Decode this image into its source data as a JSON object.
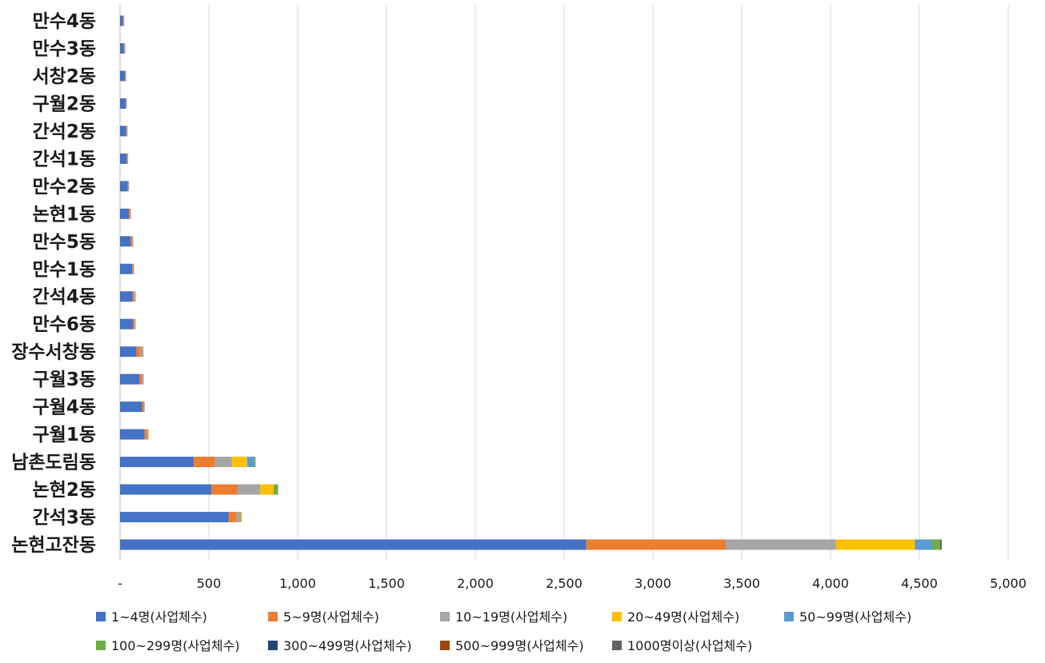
{
  "chart_data": {
    "type": "bar",
    "orientation": "horizontal",
    "stacked": true,
    "title": "",
    "xlabel": "",
    "ylabel": "",
    "xlim": [
      0,
      5000
    ],
    "x_ticks": [
      0,
      500,
      1000,
      1500,
      2000,
      2500,
      3000,
      3500,
      4000,
      4500,
      5000
    ],
    "x_tick_labels": [
      "-",
      "500",
      "1,000",
      "1,500",
      "2,000",
      "2,500",
      "3,000",
      "3,500",
      "4,000",
      "4,500",
      "5,000"
    ],
    "grid": true,
    "legend_position": "bottom",
    "categories": [
      "만수4동",
      "만수3동",
      "서창2동",
      "구월2동",
      "간석2동",
      "간석1동",
      "만수2동",
      "논현1동",
      "만수5동",
      "만수1동",
      "간석4동",
      "만수6동",
      "장수서창동",
      "구월3동",
      "구월4동",
      "구월1동",
      "남촌도림동",
      "논현2동",
      "간석3동",
      "논현고잔동"
    ],
    "series": [
      {
        "name": "1~4명(사업체수)",
        "color": "#4472C4",
        "values": [
          16,
          22,
          28,
          32,
          35,
          38,
          44,
          50,
          60,
          68,
          70,
          72,
          92,
          110,
          125,
          138,
          415,
          515,
          612,
          2625
        ]
      },
      {
        "name": "5~9명(사업체수)",
        "color": "#ED7D31",
        "values": [
          4,
          4,
          3,
          3,
          4,
          4,
          3,
          8,
          10,
          8,
          10,
          10,
          24,
          15,
          10,
          14,
          120,
          145,
          45,
          785
        ]
      },
      {
        "name": "10~19명(사업체수)",
        "color": "#A5A5A5",
        "values": [
          1,
          1,
          1,
          2,
          3,
          2,
          2,
          2,
          4,
          3,
          8,
          6,
          16,
          8,
          4,
          6,
          95,
          130,
          25,
          620
        ]
      },
      {
        "name": "20~49명(사업체수)",
        "color": "#FFC000",
        "values": [
          0,
          0,
          0,
          0,
          0,
          0,
          0,
          0,
          0,
          0,
          0,
          0,
          0,
          0,
          0,
          4,
          85,
          75,
          4,
          445
        ]
      },
      {
        "name": "50~99명(사업체수)",
        "color": "#5B9BD5",
        "values": [
          0,
          0,
          0,
          0,
          0,
          0,
          0,
          0,
          0,
          0,
          0,
          0,
          0,
          0,
          0,
          0,
          40,
          0,
          0,
          95
        ]
      },
      {
        "name": "100~299명(사업체수)",
        "color": "#70AD47",
        "values": [
          0,
          0,
          0,
          0,
          0,
          0,
          0,
          0,
          0,
          0,
          0,
          0,
          0,
          0,
          0,
          0,
          8,
          25,
          0,
          48
        ]
      },
      {
        "name": "300~499명(사업체수)",
        "color": "#264478",
        "values": [
          0,
          0,
          0,
          0,
          0,
          0,
          0,
          0,
          0,
          0,
          0,
          0,
          0,
          0,
          0,
          0,
          0,
          0,
          0,
          3
        ]
      },
      {
        "name": "500~999명(사업체수)",
        "color": "#9E480E",
        "values": [
          0,
          0,
          0,
          0,
          0,
          0,
          0,
          0,
          0,
          0,
          0,
          0,
          0,
          0,
          0,
          0,
          0,
          0,
          0,
          1
        ]
      },
      {
        "name": "1000명이상(사업체수)",
        "color": "#636363",
        "values": [
          0,
          0,
          0,
          0,
          0,
          0,
          0,
          0,
          0,
          0,
          0,
          0,
          0,
          0,
          0,
          0,
          0,
          0,
          0,
          1
        ]
      }
    ]
  }
}
